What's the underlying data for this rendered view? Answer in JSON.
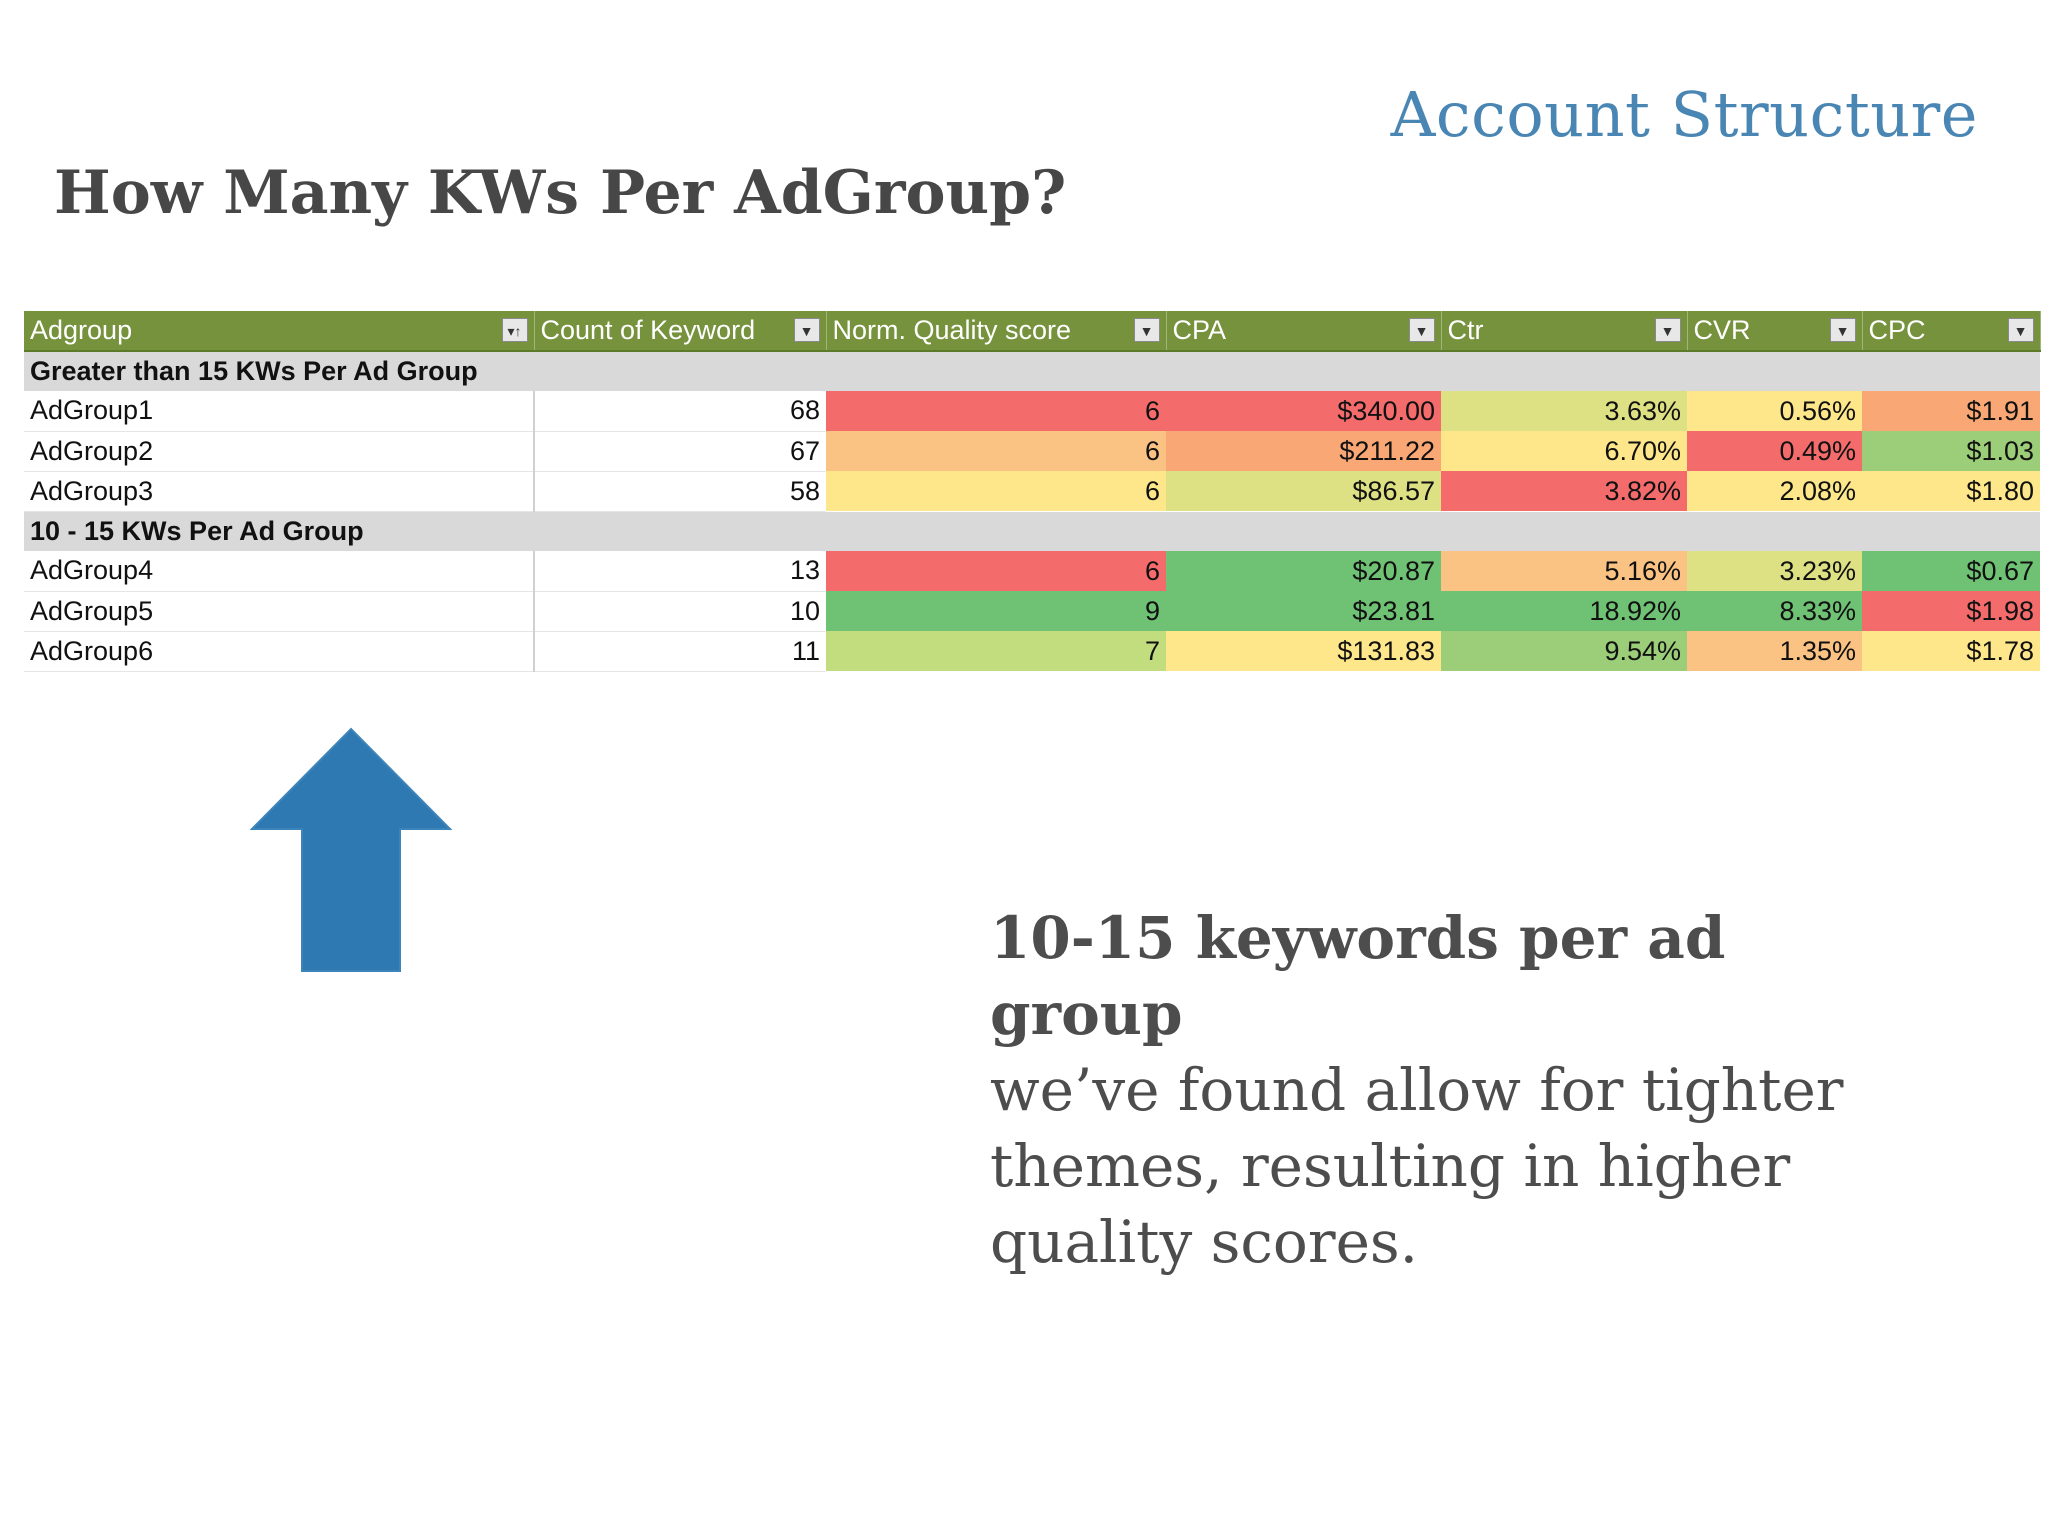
{
  "section_title": "Account Structure",
  "page_title": "How Many KWs Per AdGroup?",
  "table": {
    "columns": [
      "Adgroup",
      "Count of Keyword",
      "Norm. Quality score",
      "CPA",
      "Ctr",
      "CVR",
      "CPC"
    ],
    "groups": [
      {
        "label": "Greater than 15 KWs Per Ad Group",
        "rows": [
          {
            "name": "AdGroup1",
            "count": "68",
            "qs": "6",
            "cpa": "$340.00",
            "ctr": "3.63%",
            "cvr": "0.56%",
            "cpc": "$1.91"
          },
          {
            "name": "AdGroup2",
            "count": "67",
            "qs": "6",
            "cpa": "$211.22",
            "ctr": "6.70%",
            "cvr": "0.49%",
            "cpc": "$1.03"
          },
          {
            "name": "AdGroup3",
            "count": "58",
            "qs": "6",
            "cpa": "$86.57",
            "ctr": "3.82%",
            "cvr": "2.08%",
            "cpc": "$1.80"
          }
        ]
      },
      {
        "label": "10 - 15 KWs Per Ad Group",
        "rows": [
          {
            "name": "AdGroup4",
            "count": "13",
            "qs": "6",
            "cpa": "$20.87",
            "ctr": "5.16%",
            "cvr": "3.23%",
            "cpc": "$0.67"
          },
          {
            "name": "AdGroup5",
            "count": "10",
            "qs": "9",
            "cpa": "$23.81",
            "ctr": "18.92%",
            "cvr": "8.33%",
            "cpc": "$1.98"
          },
          {
            "name": "AdGroup6",
            "count": "11",
            "qs": "7",
            "cpa": "$131.83",
            "ctr": "9.54%",
            "cvr": "1.35%",
            "cpc": "$1.78"
          }
        ]
      }
    ]
  },
  "heat_colors": {
    "red": "#f36b6b",
    "orange": "#f9a875",
    "light_orange": "#fbc383",
    "yellow": "#fde78a",
    "yellow_green": "#dde183",
    "light_green": "#c2dd7e",
    "green_mid": "#9ccd78",
    "green": "#6fc174"
  },
  "arrow_color": "#2e79b1",
  "caption": {
    "strong": "10-15 keywords per ad group",
    "body": "we’ve found allow for tighter themes, resulting in higher quality scores."
  }
}
